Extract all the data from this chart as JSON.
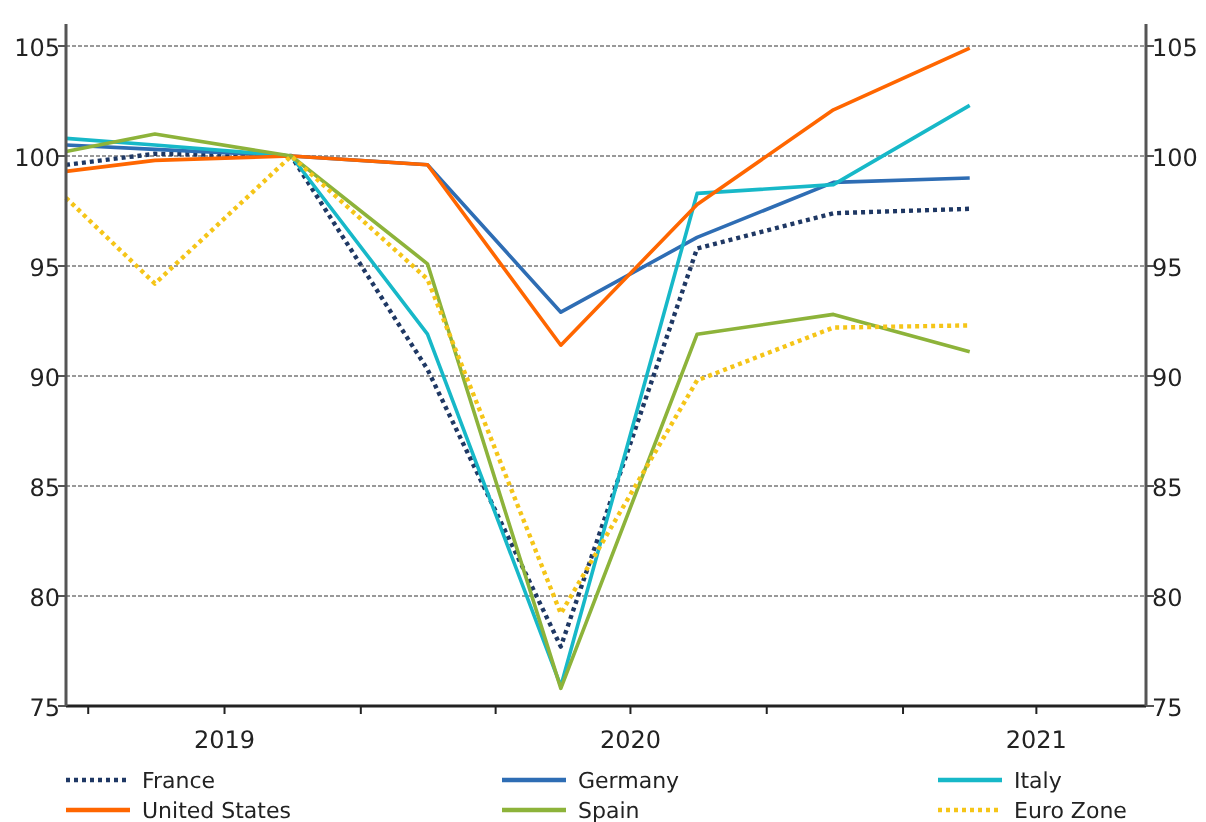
{
  "chart_data": {
    "type": "line",
    "x": [
      "2019-06-16",
      "2019-08-15",
      "2019-11-15",
      "2020-02-15",
      "2020-05-15",
      "2020-08-15",
      "2020-11-15",
      "2021-02-15"
    ],
    "xlim": [
      "2019-06-16",
      "2021-06-14"
    ],
    "xticks": [
      {
        "value": "2019-07-01",
        "label": null
      },
      {
        "value": "2019-10-01",
        "label": "2019"
      },
      {
        "value": "2020-01-01",
        "label": null
      },
      {
        "value": "2020-04-01",
        "label": null
      },
      {
        "value": "2020-07-01",
        "label": "2020"
      },
      {
        "value": "2020-10-01",
        "label": null
      },
      {
        "value": "2021-01-01",
        "label": null
      },
      {
        "value": "2021-04-01",
        "label": "2021"
      }
    ],
    "ylim": [
      75,
      106
    ],
    "yticks": [
      75,
      80,
      85,
      90,
      95,
      100,
      105
    ],
    "y2lim": [
      75,
      106
    ],
    "y2ticks": [
      75,
      80,
      85,
      90,
      95,
      100,
      105
    ],
    "grid": "y",
    "legend": "bottom",
    "series": [
      {
        "name": "France",
        "color": "#1f3864",
        "line_style": "dotted",
        "values": [
          99.6,
          100.1,
          100,
          90.3,
          77.7,
          95.8,
          97.4,
          97.6
        ]
      },
      {
        "name": "Germany",
        "color": "#2e6db4",
        "line_style": "solid",
        "values": [
          100.5,
          100.3,
          100,
          99.6,
          92.9,
          96.3,
          98.8,
          99.0
        ]
      },
      {
        "name": "Italy",
        "color": "#17b8c8",
        "line_style": "solid",
        "values": [
          100.8,
          100.5,
          100,
          91.9,
          75.9,
          98.3,
          98.7,
          102.3
        ]
      },
      {
        "name": "United States",
        "color": "#ff6600",
        "line_style": "solid",
        "values": [
          99.3,
          99.8,
          100,
          99.6,
          91.4,
          97.8,
          102.1,
          104.9
        ]
      },
      {
        "name": "Spain",
        "color": "#8db33a",
        "line_style": "solid",
        "values": [
          100.2,
          101.0,
          100,
          95.1,
          75.8,
          91.9,
          92.8,
          91.1
        ]
      },
      {
        "name": "Euro Zone",
        "color": "#f5c518",
        "line_style": "dotted",
        "values": [
          98.1,
          94.2,
          100,
          94.4,
          79.2,
          89.8,
          92.2,
          92.3
        ]
      }
    ]
  }
}
